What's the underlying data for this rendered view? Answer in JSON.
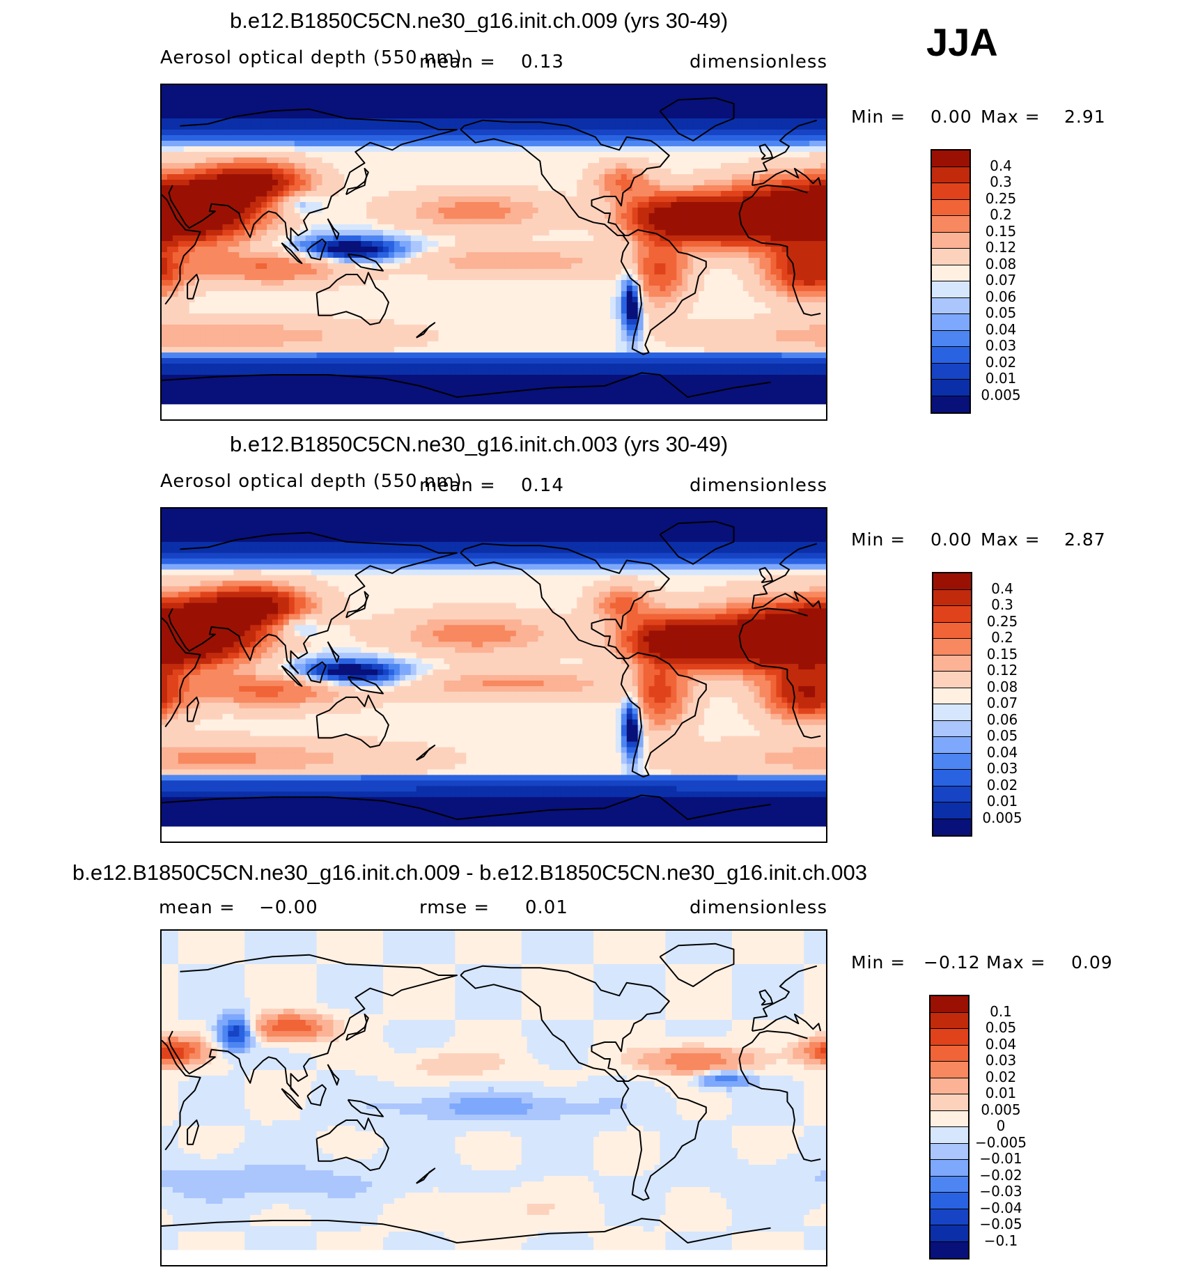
{
  "season": "JJA",
  "colors": {
    "seq": [
      "#08107a",
      "#0b2fa8",
      "#1644c4",
      "#2a63e2",
      "#4d86f2",
      "#7ea8fb",
      "#aac6fd",
      "#d6e6fd",
      "#fff0e2",
      "#fdd2bd",
      "#fbb295",
      "#f8885f",
      "#f06437",
      "#e0431b",
      "#c22a0c",
      "#9a1104"
    ],
    "diff": [
      "#08107a",
      "#0b2fa8",
      "#1644c4",
      "#2a63e2",
      "#4d86f2",
      "#7ea8fb",
      "#aac6fd",
      "#d6e6fd",
      "#fff0e2",
      "#fdd2bd",
      "#fbb295",
      "#f8885f",
      "#f06437",
      "#e0431b",
      "#c22a0c",
      "#9a1104"
    ],
    "land": "#000000"
  },
  "chart_data": [
    {
      "type": "heatmap",
      "title": "b.e12.B1850C5CN.ne30_g16.init.ch.009 (yrs 30-49)",
      "variable": "Aerosol optical depth (550 nm)",
      "mean_label": "mean =",
      "mean_value": "0.13",
      "units": "dimensionless",
      "min_label": "Min =",
      "min_value": "0.00",
      "max_label": "Max =",
      "max_value": "2.91",
      "levels": [
        "0.4",
        "0.3",
        "0.25",
        "0.2",
        "0.15",
        "0.12",
        "0.08",
        "0.07",
        "0.06",
        "0.05",
        "0.04",
        "0.03",
        "0.02",
        "0.01",
        "0.005"
      ],
      "field_scale": 1.0
    },
    {
      "type": "heatmap",
      "title": "b.e12.B1850C5CN.ne30_g16.init.ch.003 (yrs 30-49)",
      "variable": "Aerosol optical depth (550 nm)",
      "mean_label": "mean =",
      "mean_value": "0.14",
      "units": "dimensionless",
      "min_label": "Min =",
      "min_value": "0.00",
      "max_label": "Max =",
      "max_value": "2.87",
      "levels": [
        "0.4",
        "0.3",
        "0.25",
        "0.2",
        "0.15",
        "0.12",
        "0.08",
        "0.07",
        "0.06",
        "0.05",
        "0.04",
        "0.03",
        "0.02",
        "0.01",
        "0.005"
      ],
      "field_scale": 1.05
    },
    {
      "type": "heatmap",
      "title": "b.e12.B1850C5CN.ne30_g16.init.ch.009 - b.e12.B1850C5CN.ne30_g16.init.ch.003",
      "mean_label": "mean =",
      "mean_value": "−0.00",
      "rmse_label": "rmse =",
      "rmse_value": "0.01",
      "units": "dimensionless",
      "min_label": "Min =",
      "min_value": "−0.12",
      "max_label": "Max =",
      "max_value": "0.09",
      "levels": [
        "0.1",
        "0.05",
        "0.04",
        "0.03",
        "0.02",
        "0.01",
        "0.005",
        "0",
        "−0.005",
        "−0.01",
        "−0.02",
        "−0.03",
        "−0.04",
        "−0.05",
        "−0.1"
      ]
    }
  ]
}
